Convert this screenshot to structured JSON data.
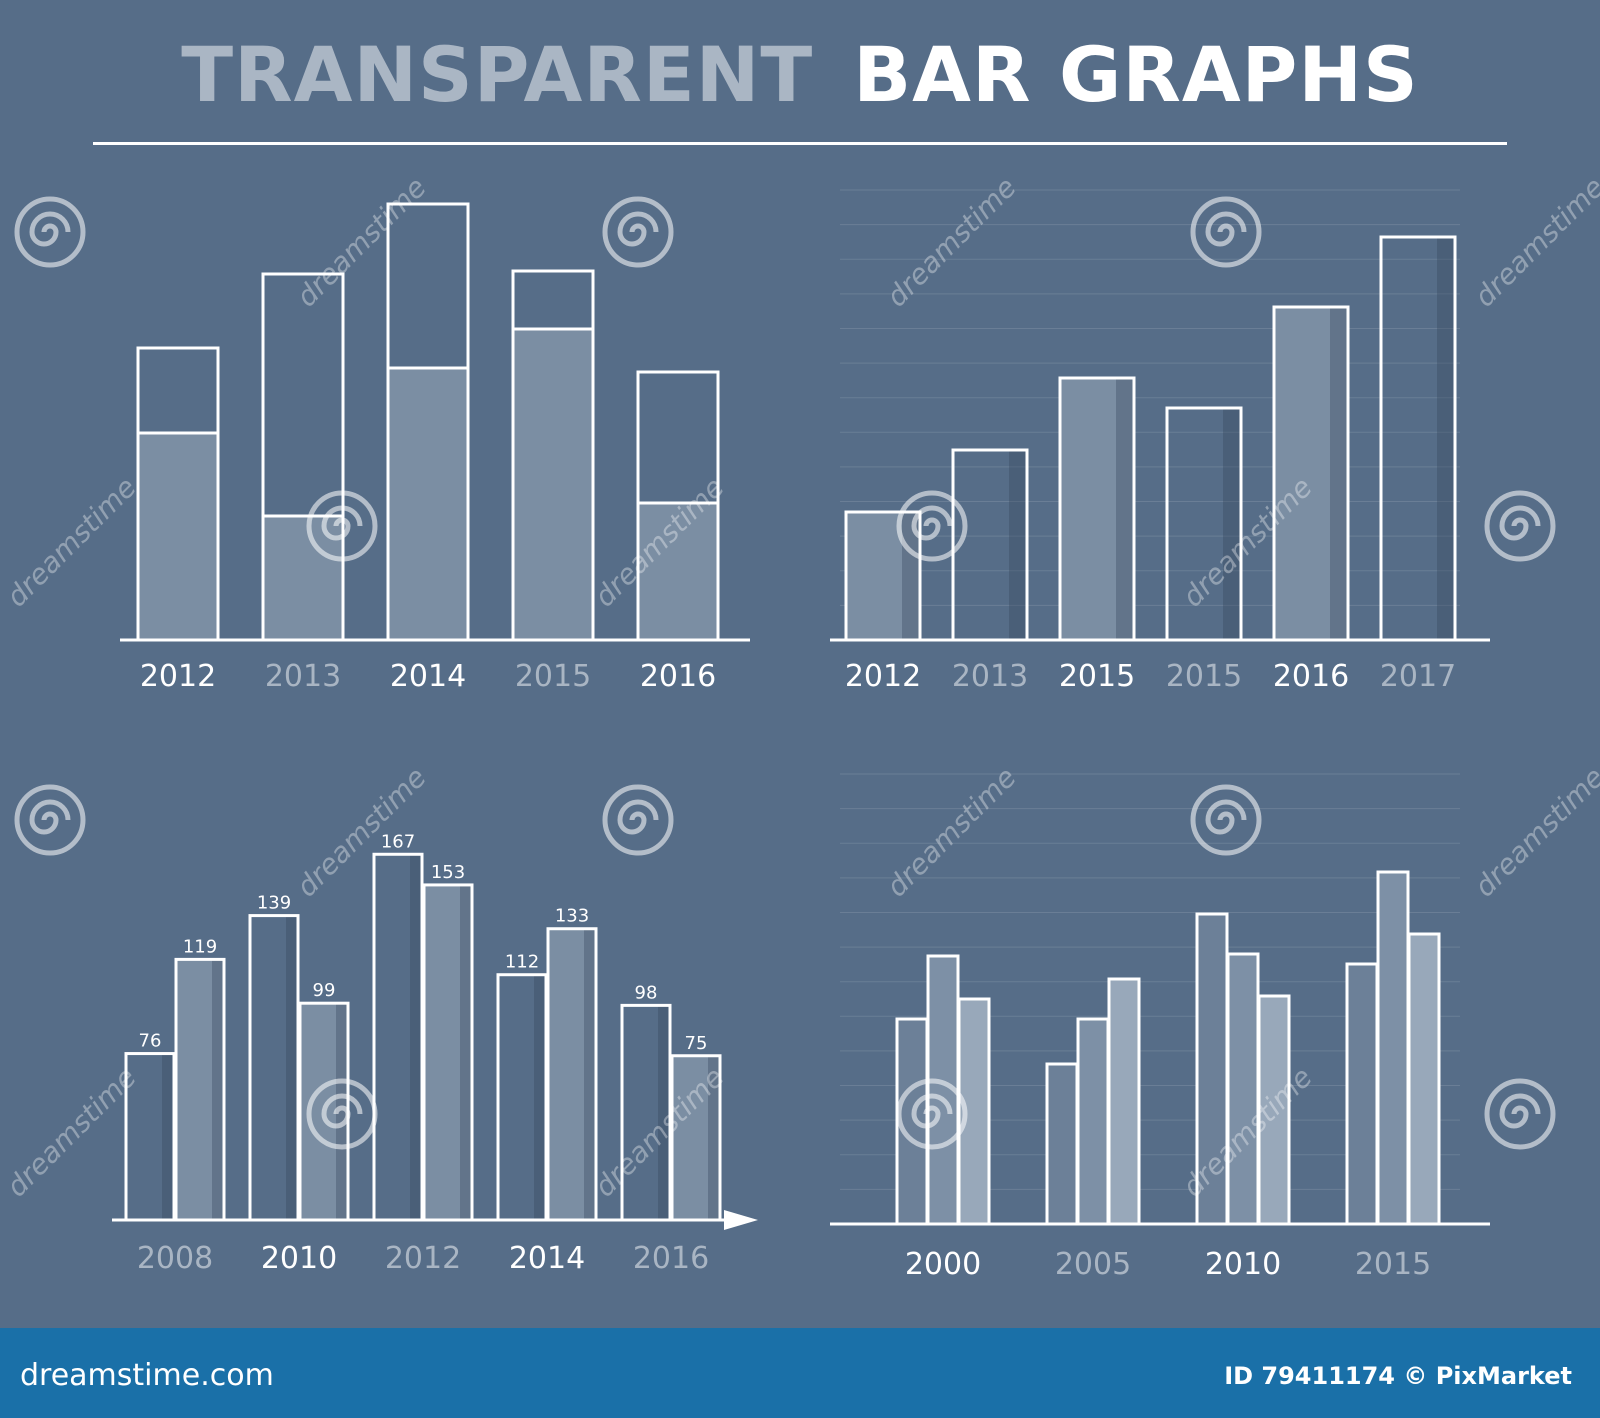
{
  "title": {
    "part1": "TRANSPARENT",
    "part2": "BAR GRAPHS"
  },
  "footer": {
    "site": "dreamstime.com",
    "id_text": "ID 79411174 © PixMarket"
  },
  "watermark": {
    "text": "dreamstime",
    "icon": "spiral-icon"
  },
  "colors": {
    "background": "#566d88",
    "bar_fill": "#7b8ea3",
    "bar_outline": "#ffffff",
    "label_bright": "#ffffff",
    "label_dim": "#a9b5c3",
    "footer_bar": "#1a70a8"
  },
  "chart_data": [
    {
      "type": "bar",
      "variant": "stacked-fill",
      "categories": [
        "2012",
        "2013",
        "2014",
        "2015",
        "2016"
      ],
      "series": [
        {
          "values": [
            207,
            124,
            272,
            311,
            137
          ]
        },
        {
          "values": [
            85,
            242,
            164,
            58,
            131
          ]
        }
      ],
      "ylim": [
        0,
        450
      ],
      "title": "",
      "xlabel": "",
      "ylabel": "",
      "grid": false
    },
    {
      "type": "bar",
      "variant": "shaded",
      "categories": [
        "2012",
        "2013",
        "2015",
        "2015",
        "2016",
        "2017"
      ],
      "values": [
        128,
        190,
        262,
        232,
        333,
        403
      ],
      "filled": [
        true,
        false,
        true,
        false,
        true,
        false
      ],
      "ylim": [
        0,
        450
      ],
      "title": "",
      "xlabel": "",
      "ylabel": "",
      "grid": true
    },
    {
      "type": "bar",
      "variant": "paired-labeled",
      "categories": [
        "2008",
        "2010",
        "2012",
        "2014",
        "2016"
      ],
      "series": [
        {
          "values": [
            76,
            139,
            167,
            112,
            98
          ]
        },
        {
          "values": [
            119,
            99,
            153,
            133,
            75
          ]
        }
      ],
      "ylim": [
        0,
        200
      ],
      "title": "",
      "xlabel": "",
      "ylabel": "",
      "grid": false,
      "axis_arrow": true
    },
    {
      "type": "bar",
      "variant": "grouped-3",
      "categories": [
        "2000",
        "2005",
        "2010",
        "2015"
      ],
      "series": [
        {
          "values": [
            205,
            160,
            310,
            260
          ]
        },
        {
          "values": [
            268,
            205,
            270,
            352
          ]
        },
        {
          "values": [
            225,
            245,
            228,
            290
          ]
        }
      ],
      "ylim": [
        0,
        450
      ],
      "title": "",
      "xlabel": "",
      "ylabel": "",
      "grid": true
    }
  ]
}
